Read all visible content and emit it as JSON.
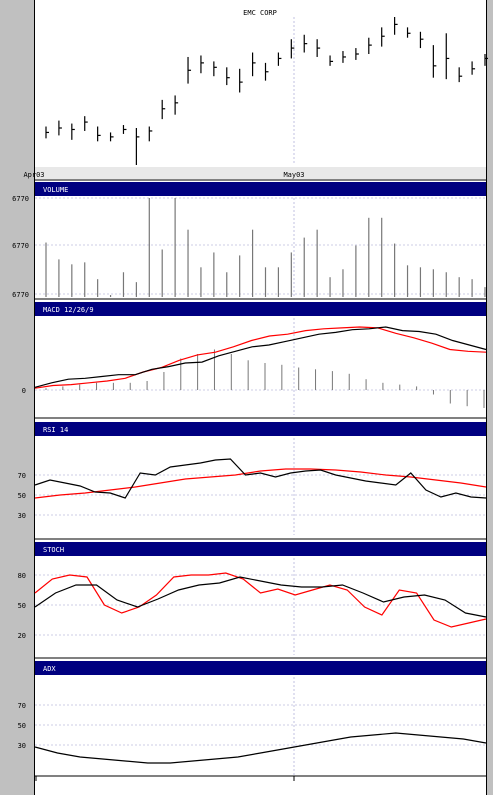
{
  "chart_data": {
    "type": "line",
    "title": "EMC CORP",
    "x_ticks": [
      "Apr03",
      "May03"
    ],
    "colors": {
      "panel_header": "#000080",
      "primary": "#000000",
      "signal": "#ff0000",
      "grid": "#9999cc"
    },
    "price": {
      "type": "ohlc",
      "bars": [
        {
          "low": 0.18,
          "high": 0.26,
          "close": 0.22
        },
        {
          "low": 0.2,
          "high": 0.3,
          "close": 0.25
        },
        {
          "low": 0.17,
          "high": 0.28,
          "close": 0.24
        },
        {
          "low": 0.23,
          "high": 0.33,
          "close": 0.29
        },
        {
          "low": 0.16,
          "high": 0.26,
          "close": 0.2
        },
        {
          "low": 0.16,
          "high": 0.22,
          "close": 0.19
        },
        {
          "low": 0.21,
          "high": 0.27,
          "close": 0.24
        },
        {
          "low": 0.0,
          "high": 0.25,
          "close": 0.19
        },
        {
          "low": 0.16,
          "high": 0.26,
          "close": 0.23
        },
        {
          "low": 0.31,
          "high": 0.44,
          "close": 0.38
        },
        {
          "low": 0.34,
          "high": 0.47,
          "close": 0.42
        },
        {
          "low": 0.55,
          "high": 0.73,
          "close": 0.64
        },
        {
          "low": 0.62,
          "high": 0.74,
          "close": 0.69
        },
        {
          "low": 0.6,
          "high": 0.7,
          "close": 0.66
        },
        {
          "low": 0.54,
          "high": 0.66,
          "close": 0.59
        },
        {
          "low": 0.49,
          "high": 0.65,
          "close": 0.56
        },
        {
          "low": 0.6,
          "high": 0.76,
          "close": 0.69
        },
        {
          "low": 0.57,
          "high": 0.69,
          "close": 0.63
        },
        {
          "low": 0.67,
          "high": 0.76,
          "close": 0.72
        },
        {
          "low": 0.72,
          "high": 0.85,
          "close": 0.79
        },
        {
          "low": 0.76,
          "high": 0.88,
          "close": 0.82
        },
        {
          "low": 0.73,
          "high": 0.85,
          "close": 0.79
        },
        {
          "low": 0.67,
          "high": 0.74,
          "close": 0.7
        },
        {
          "low": 0.69,
          "high": 0.77,
          "close": 0.73
        },
        {
          "low": 0.71,
          "high": 0.79,
          "close": 0.75
        },
        {
          "low": 0.75,
          "high": 0.86,
          "close": 0.81
        },
        {
          "low": 0.8,
          "high": 0.93,
          "close": 0.87
        },
        {
          "low": 0.88,
          "high": 1.0,
          "close": 0.95
        },
        {
          "low": 0.86,
          "high": 0.93,
          "close": 0.89
        },
        {
          "low": 0.79,
          "high": 0.9,
          "close": 0.85
        },
        {
          "low": 0.59,
          "high": 0.81,
          "close": 0.67
        },
        {
          "low": 0.58,
          "high": 0.89,
          "close": 0.72
        },
        {
          "low": 0.56,
          "high": 0.66,
          "close": 0.6
        },
        {
          "low": 0.61,
          "high": 0.7,
          "close": 0.65
        },
        {
          "low": 0.67,
          "high": 0.75,
          "close": 0.72
        }
      ]
    },
    "volume": {
      "label": "VOLUME",
      "y_ticks": [
        "6770",
        "6770",
        "6770"
      ],
      "values": [
        0.55,
        0.38,
        0.33,
        0.35,
        0.18,
        0.02,
        0.25,
        0.15,
        1.0,
        0.48,
        1.0,
        0.68,
        0.3,
        0.45,
        0.25,
        0.42,
        0.68,
        0.3,
        0.3,
        0.45,
        0.6,
        0.68,
        0.2,
        0.28,
        0.52,
        0.8,
        0.8,
        0.54,
        0.32,
        0.3,
        0.28,
        0.25,
        0.2,
        0.18,
        0.1
      ]
    },
    "macd": {
      "label": "MACD 12/26/9",
      "y_ticks": [
        "0"
      ],
      "line": [
        0.03,
        0.08,
        0.12,
        0.13,
        0.15,
        0.17,
        0.17,
        0.23,
        0.26,
        0.3,
        0.31,
        0.38,
        0.43,
        0.48,
        0.5,
        0.54,
        0.58,
        0.62,
        0.64,
        0.67,
        0.68,
        0.7,
        0.66,
        0.65,
        0.62,
        0.55,
        0.5,
        0.45
      ],
      "signal": [
        0.02,
        0.05,
        0.06,
        0.08,
        0.1,
        0.13,
        0.2,
        0.25,
        0.33,
        0.39,
        0.42,
        0.48,
        0.55,
        0.6,
        0.62,
        0.66,
        0.68,
        0.69,
        0.7,
        0.69,
        0.63,
        0.58,
        0.52,
        0.45,
        0.43,
        0.42
      ],
      "histogram": [
        0.02,
        0.04,
        0.06,
        0.08,
        0.08,
        0.08,
        0.1,
        0.2,
        0.35,
        0.4,
        0.45,
        0.4,
        0.33,
        0.3,
        0.28,
        0.25,
        0.23,
        0.21,
        0.18,
        0.12,
        0.08,
        0.06,
        0.04,
        -0.05,
        -0.15,
        -0.18,
        -0.2
      ]
    },
    "rsi": {
      "label": "RSI 14",
      "y_ticks": [
        "70",
        "50",
        "30"
      ],
      "ylim": [
        0,
        100
      ],
      "line": [
        60,
        65,
        62,
        59,
        53,
        52,
        47,
        72,
        70,
        78,
        80,
        82,
        85,
        86,
        70,
        72,
        68,
        72,
        74,
        75,
        70,
        67,
        64,
        62,
        60,
        72,
        55,
        48,
        52,
        48,
        47
      ],
      "signal": [
        47,
        50,
        52,
        55,
        58,
        62,
        66,
        68,
        70,
        74,
        76,
        76,
        75,
        73,
        70,
        68,
        65,
        62,
        58
      ]
    },
    "stoch": {
      "label": "STOCH",
      "y_ticks": [
        "80",
        "50",
        "20"
      ],
      "ylim": [
        0,
        100
      ],
      "line": [
        48,
        62,
        70,
        70,
        55,
        48,
        56,
        65,
        70,
        72,
        78,
        74,
        70,
        68,
        68,
        70,
        62,
        53,
        58,
        60,
        55,
        42,
        38
      ],
      "signal": [
        62,
        76,
        80,
        78,
        50,
        42,
        48,
        60,
        78,
        80,
        80,
        82,
        76,
        62,
        66,
        60,
        65,
        70,
        65,
        48,
        40,
        65,
        62,
        35,
        28,
        32,
        36
      ]
    },
    "adx": {
      "label": "ADX",
      "y_ticks": [
        "70",
        "50",
        "30"
      ],
      "ylim": [
        0,
        100
      ],
      "line": [
        28,
        22,
        18,
        16,
        14,
        12,
        12,
        14,
        16,
        18,
        22,
        26,
        30,
        34,
        38,
        40,
        42,
        40,
        38,
        36,
        32
      ]
    }
  }
}
